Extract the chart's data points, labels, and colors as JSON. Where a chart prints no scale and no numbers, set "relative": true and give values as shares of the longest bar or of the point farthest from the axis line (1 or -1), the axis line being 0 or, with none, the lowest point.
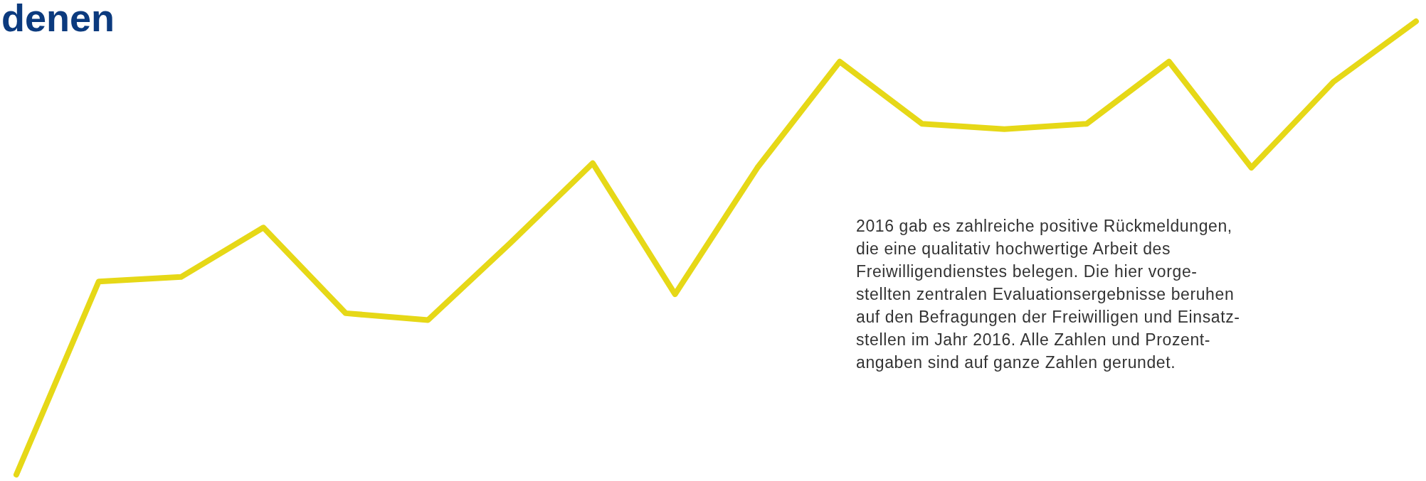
{
  "chart_data": {
    "type": "line",
    "title": "denen",
    "relative": true,
    "categories": [
      null,
      null,
      null,
      null,
      null,
      null,
      null,
      null,
      null,
      null,
      null,
      null,
      null,
      null,
      null,
      null,
      null,
      null
    ],
    "series": [
      {
        "color": "#e6d817",
        "values": [
          0,
          0.426,
          0.436,
          0.545,
          0.356,
          0.341,
          0.511,
          0.687,
          0.398,
          0.677,
          0.911,
          0.774,
          0.762,
          0.774,
          0.911,
          0.677,
          0.867,
          1
        ]
      }
    ],
    "marker": "none",
    "line_style": "solid",
    "grid": false,
    "annotations": [
      "2016 gab es zahlreiche positive Rückmeldungen,\ndie eine qualitativ hochwertige Arbeit des\nFreiwilligendienstes belegen. Die hier vorge-\nstellten zentralen Evaluationsergebnisse beruhen\nauf den Befragungen der Freiwilligen und Einsatz-\nstellen im Jahr 2016. Alle Zahlen und Prozent-\nangaben sind auf ganze Zahlen gerundet."
    ]
  }
}
